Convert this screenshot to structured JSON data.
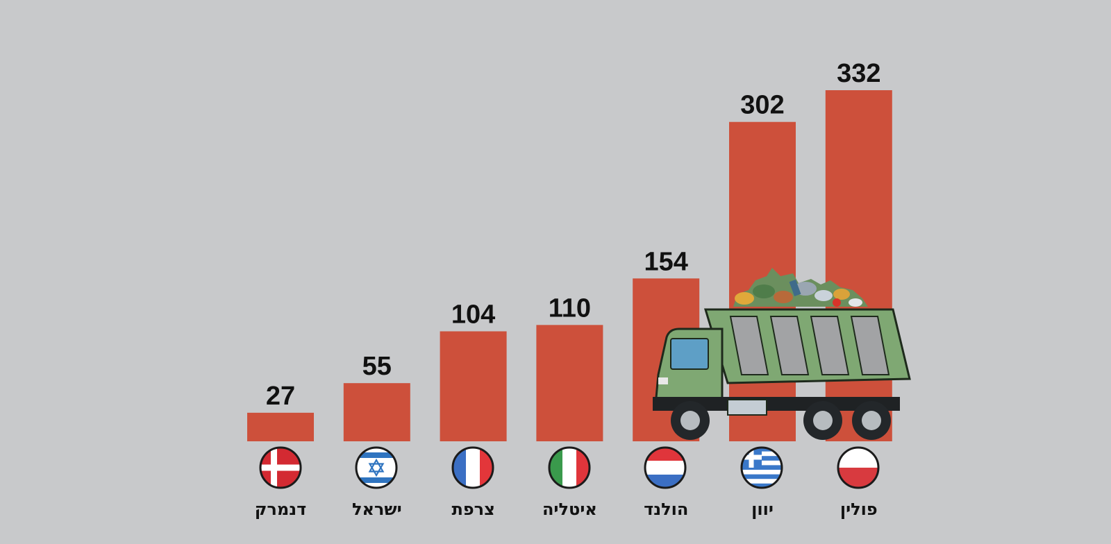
{
  "chart_data": {
    "type": "bar",
    "categories": [
      "דנמרק",
      "ישראל",
      "צרפת",
      "איטליה",
      "הולנד",
      "יוון",
      "פולין"
    ],
    "values": [
      27,
      55,
      104,
      110,
      154,
      302,
      332
    ],
    "data_labels": [
      "27",
      "55",
      "104",
      "110",
      "154",
      "302",
      "332"
    ],
    "flags": [
      "denmark-flag-icon",
      "israel-flag-icon",
      "france-flag-icon",
      "italy-flag-icon",
      "netherlands-flag-icon",
      "greece-flag-icon",
      "poland-flag-icon"
    ],
    "ylim": [
      0,
      332
    ],
    "grid": false,
    "legend": "none",
    "title": "",
    "xlabel": "",
    "ylabel": ""
  },
  "colors": {
    "background": "#c8c9cb",
    "bar": "#cd503b",
    "label": "#111111",
    "truck_body": "#7fa873",
    "truck_panel": "#a2a3a5"
  },
  "decorations": {
    "illustration": "garbage-truck-icon"
  }
}
